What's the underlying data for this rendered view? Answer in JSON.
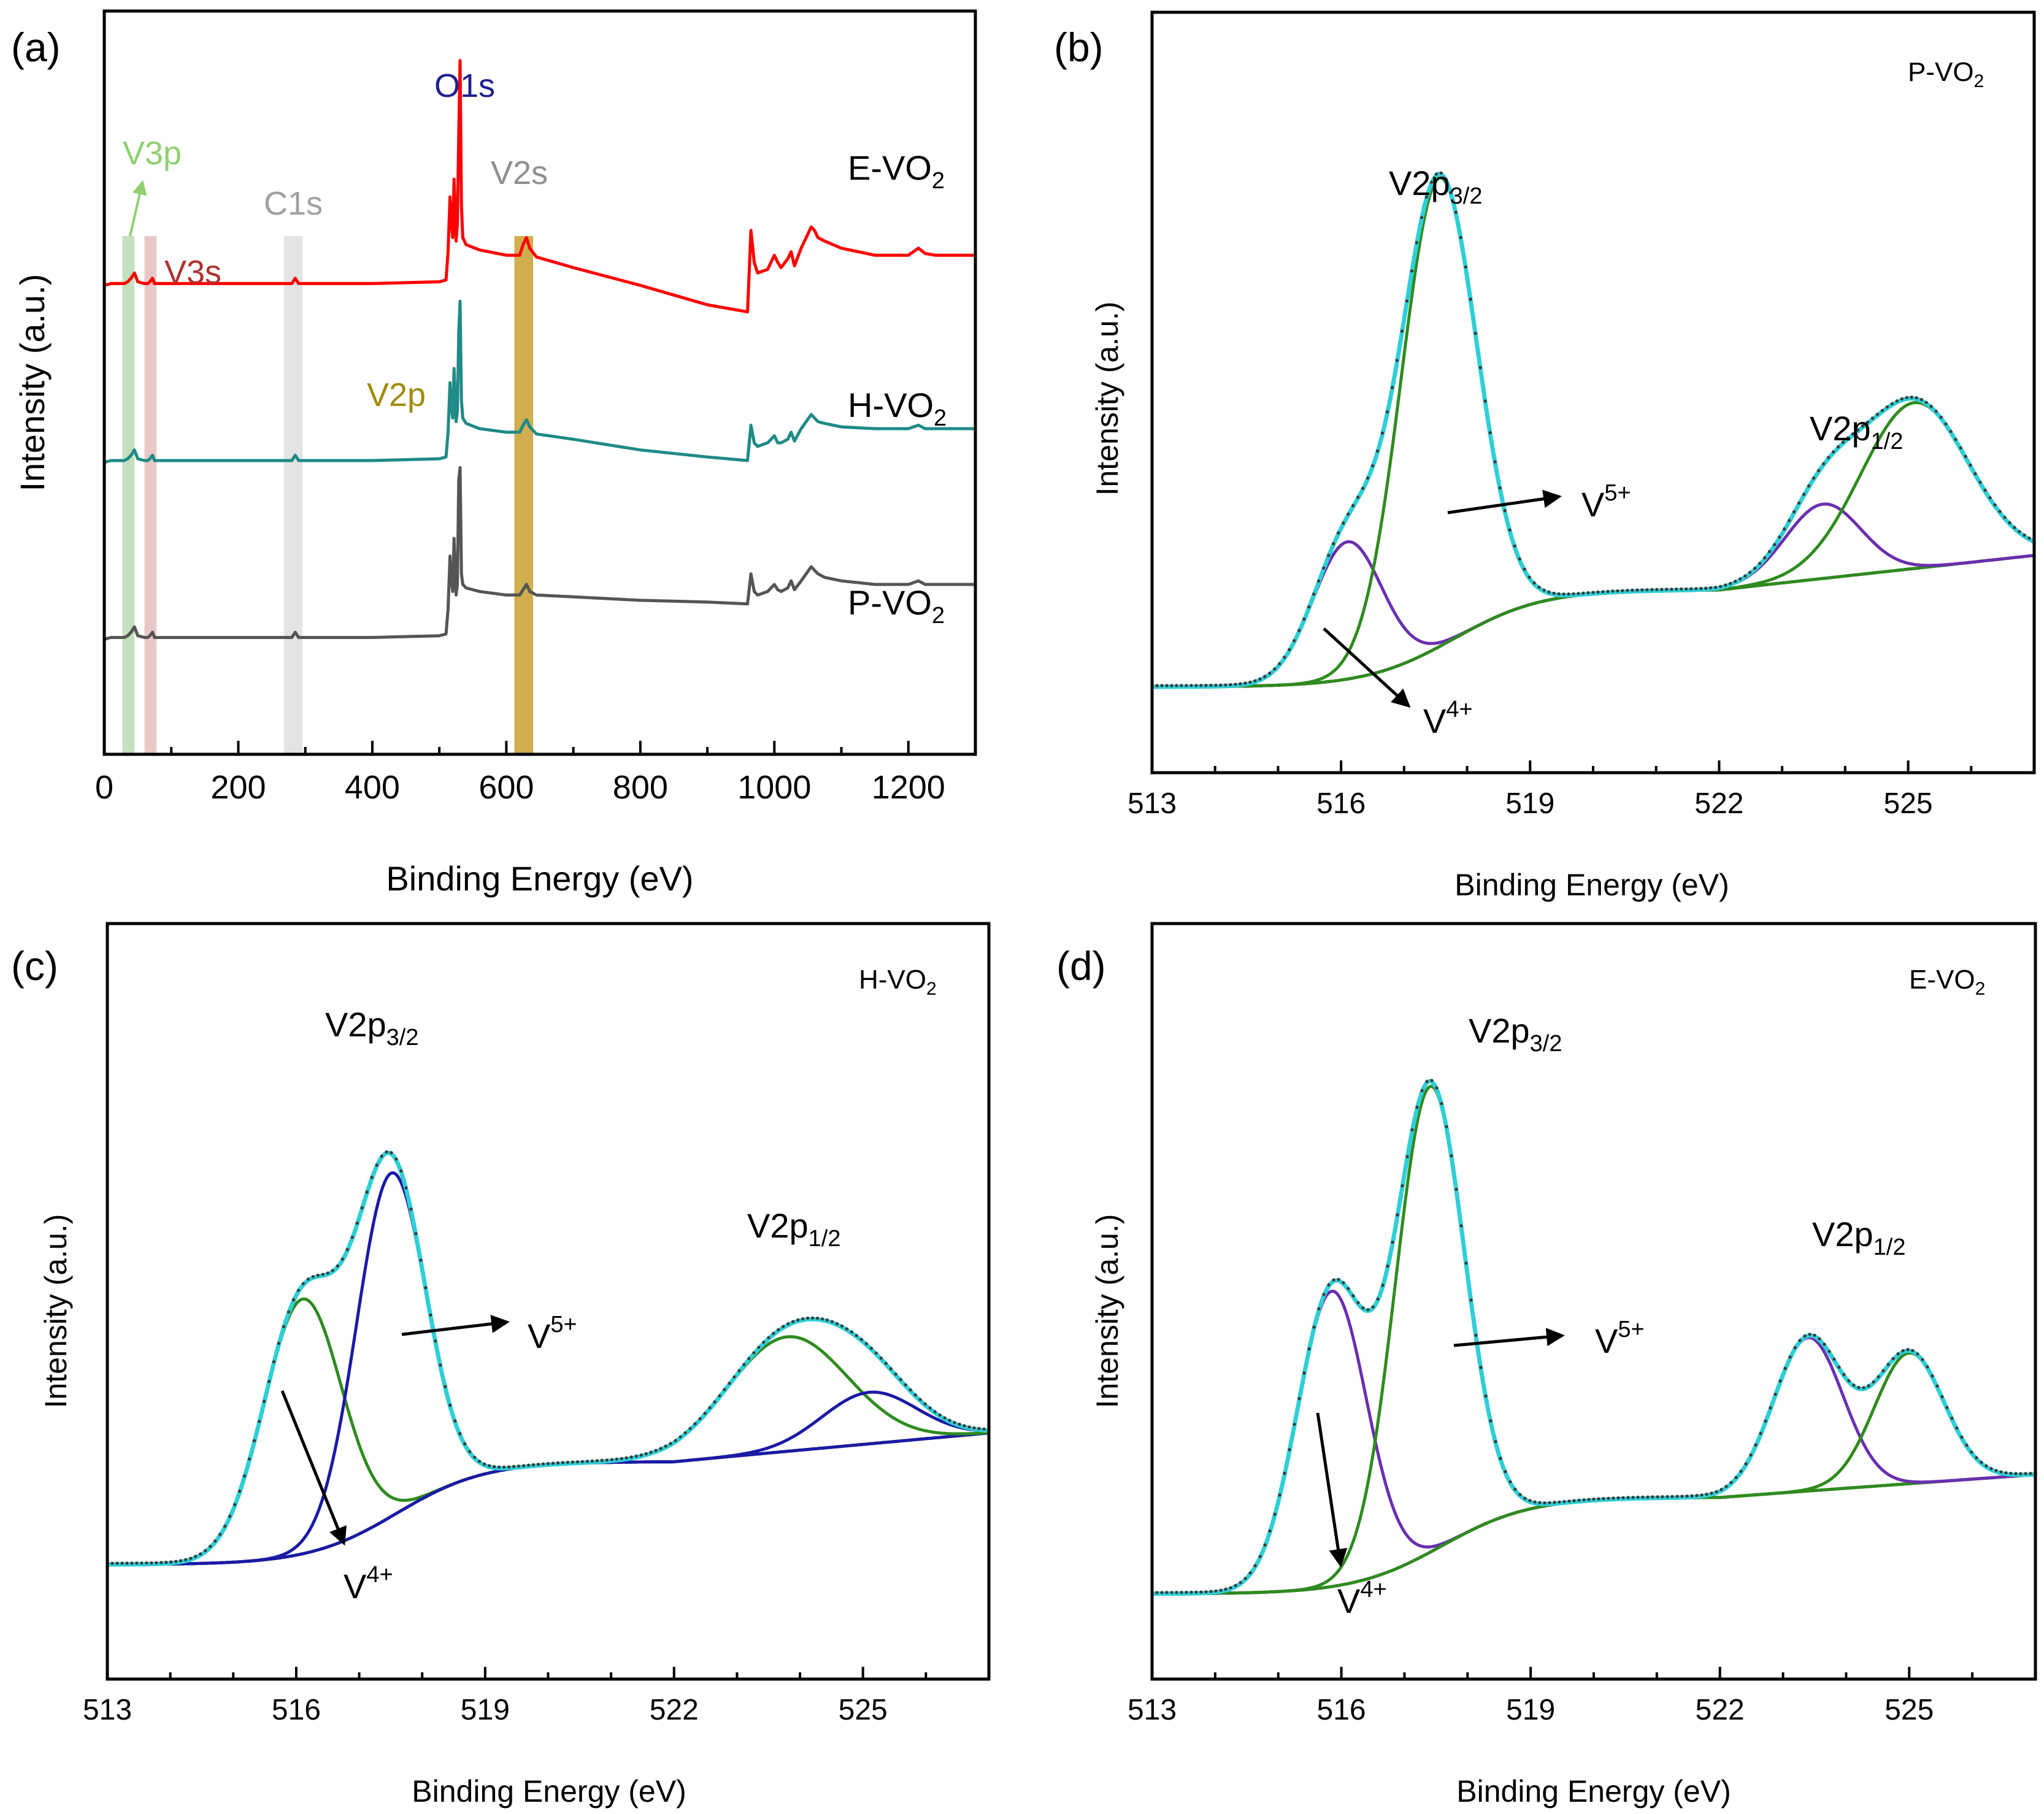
{
  "figure": {
    "panel_labels": [
      "(a)",
      "(b)",
      "(c)",
      "(d)"
    ],
    "background": "#ffffff"
  },
  "colors": {
    "E": "#ff0000",
    "H": "#1f8a86",
    "P": "#555555",
    "V3p": "#90d070",
    "V3s": "#b03030",
    "C1s": "#a0a0a0",
    "O1s": "#202090",
    "V2s": "#909090",
    "V2p": "#a08c10",
    "V3p_band": "#a8d4a0",
    "V3s_band": "#e0b0b0",
    "C1s_band": "#d8d8d8",
    "V2p_band": "#c8a030",
    "envelope": "#2fcfd6",
    "raw": "#3a3a3a",
    "v5_green": "#2e8b1e",
    "v4_purple": "#6a2fb0",
    "blue": "#1a1aa6",
    "background": "#d4a520"
  },
  "chart_data": [
    {
      "panel": "(a)",
      "type": "line",
      "title": "",
      "xlabel": "Binding Energy (eV)",
      "ylabel": "Intensity (a.u.)",
      "xlim": [
        0,
        1300
      ],
      "xticks": [
        "0",
        "200",
        "400",
        "600",
        "800",
        "1000",
        "1200"
      ],
      "xtick_values": [
        0,
        200,
        400,
        600,
        800,
        1000,
        1200
      ],
      "y_ticks_shown": false,
      "series": [
        {
          "name": "E-VO2",
          "label": "E-VO",
          "sub": "2",
          "color_key": "E",
          "x": [
            0,
            10,
            30,
            35,
            40,
            45,
            50,
            60,
            65,
            68,
            72,
            75,
            80,
            100,
            200,
            280,
            285,
            290,
            300,
            400,
            500,
            510,
            513,
            516,
            518,
            520,
            522,
            525,
            527,
            529,
            531,
            533,
            535,
            540,
            560,
            600,
            620,
            625,
            630,
            635,
            645,
            700,
            800,
            900,
            960,
            965,
            970,
            975,
            990,
            1000,
            1005,
            1010,
            1020,
            1025,
            1030,
            1040,
            1055,
            1060,
            1065,
            1075,
            1100,
            1150,
            1200,
            1215,
            1225,
            1240,
            1300
          ],
          "y": [
            205,
            206,
            206,
            207,
            209,
            212,
            207,
            206,
            206,
            207,
            209,
            206,
            206,
            206,
            206,
            206,
            209,
            206,
            206,
            206,
            207,
            208,
            224,
            255,
            240,
            232,
            265,
            230,
            240,
            290,
            332,
            250,
            232,
            228,
            225,
            222,
            222,
            228,
            232,
            226,
            221,
            215,
            205,
            194,
            190,
            236,
            218,
            212,
            214,
            222,
            218,
            215,
            220,
            224,
            216,
            226,
            238,
            236,
            232,
            230,
            226,
            222,
            222,
            226,
            223,
            222,
            222
          ]
        },
        {
          "name": "H-VO2",
          "label": "H-VO",
          "sub": "2",
          "color_key": "H",
          "x": [
            0,
            10,
            30,
            35,
            40,
            45,
            50,
            60,
            65,
            68,
            72,
            75,
            80,
            100,
            200,
            280,
            285,
            290,
            300,
            400,
            500,
            510,
            513,
            516,
            518,
            520,
            522,
            525,
            527,
            529,
            531,
            533,
            535,
            540,
            560,
            600,
            620,
            625,
            630,
            635,
            645,
            700,
            800,
            900,
            960,
            965,
            970,
            975,
            990,
            1000,
            1005,
            1010,
            1020,
            1025,
            1030,
            1040,
            1055,
            1060,
            1065,
            1075,
            1100,
            1150,
            1200,
            1215,
            1225,
            1240,
            1300
          ],
          "y": [
            105,
            106,
            106,
            107,
            109,
            112,
            107,
            106,
            106,
            107,
            109,
            106,
            106,
            106,
            106,
            106,
            109,
            106,
            106,
            106,
            107,
            108,
            122,
            150,
            136,
            130,
            158,
            128,
            134,
            178,
            196,
            140,
            130,
            127,
            124,
            122,
            122,
            126,
            129,
            125,
            121,
            118,
            112,
            108,
            106,
            126,
            116,
            114,
            116,
            120,
            116,
            116,
            118,
            122,
            117,
            124,
            132,
            130,
            128,
            127,
            125,
            124,
            124,
            126,
            124,
            124,
            124
          ]
        },
        {
          "name": "P-VO2",
          "label": "P-VO",
          "sub": "2",
          "color_key": "P",
          "x": [
            0,
            10,
            30,
            35,
            40,
            45,
            50,
            60,
            65,
            68,
            72,
            75,
            80,
            100,
            200,
            280,
            285,
            290,
            300,
            400,
            500,
            510,
            513,
            516,
            518,
            520,
            522,
            525,
            527,
            529,
            531,
            533,
            535,
            540,
            560,
            600,
            620,
            625,
            630,
            635,
            645,
            700,
            800,
            900,
            960,
            965,
            970,
            975,
            990,
            1000,
            1005,
            1010,
            1020,
            1025,
            1030,
            1040,
            1055,
            1060,
            1065,
            1075,
            1100,
            1150,
            1200,
            1215,
            1225,
            1240,
            1300
          ],
          "y": [
            5,
            6,
            6,
            7,
            9,
            12,
            7,
            6,
            6,
            7,
            9,
            6,
            6,
            6,
            6,
            6,
            9,
            6,
            6,
            6,
            7,
            8,
            22,
            52,
            38,
            32,
            62,
            30,
            36,
            95,
            102,
            42,
            36,
            34,
            32,
            30,
            30,
            33,
            36,
            32,
            30,
            29,
            27,
            26,
            25,
            42,
            32,
            30,
            32,
            36,
            33,
            32,
            34,
            38,
            33,
            38,
            46,
            44,
            42,
            40,
            38,
            36,
            36,
            38,
            36,
            36,
            36
          ]
        }
      ],
      "bands": [
        {
          "name": "V3p",
          "x": [
            27,
            45
          ],
          "color_key": "V3p_band"
        },
        {
          "name": "V3s",
          "x": [
            60,
            78
          ],
          "color_key": "V3s_band"
        },
        {
          "name": "C1s",
          "x": [
            268,
            296
          ],
          "color_key": "C1s_band"
        },
        {
          "name": "V2p",
          "x": [
            612,
            640
          ],
          "color_key": "V2p_band"
        }
      ],
      "annotations": [
        {
          "text": "V3p",
          "color_key": "V3p"
        },
        {
          "text": "V3s",
          "color_key": "V3s"
        },
        {
          "text": "C1s",
          "color_key": "C1s"
        },
        {
          "text": "O1s",
          "color_key": "O1s"
        },
        {
          "text": "V2s",
          "color_key": "V2s"
        },
        {
          "text": "V2p",
          "color_key": "V2p"
        }
      ]
    },
    {
      "panel": "(b)",
      "type": "line",
      "sample_label": "P-VO",
      "sample_sub": "2",
      "xlabel": "Binding Energy (eV)",
      "ylabel": "Intensity (a.u.)",
      "xlim": [
        513,
        527
      ],
      "xticks": [
        "513",
        "516",
        "519",
        "522",
        "525"
      ],
      "xtick_values": [
        513,
        516,
        519,
        522,
        525
      ],
      "ylim": [
        -0.15,
        1.18
      ],
      "bg": {
        "start": 0,
        "end": 0.17,
        "center": 517.8,
        "width": 0.7,
        "slope": 0.012
      },
      "peaks": [
        {
          "name": "V4+ 2p3/2",
          "center": 516.1,
          "height": 0.24,
          "sigma": 0.55,
          "color_key": "v4_purple"
        },
        {
          "name": "V5+ 2p3/2",
          "center": 517.55,
          "height": 0.82,
          "sigma": 0.6,
          "color_key": "v5_green"
        },
        {
          "name": "V4+ 2p1/2",
          "center": 523.65,
          "height": 0.13,
          "sigma": 0.6,
          "color_key": "v4_purple"
        },
        {
          "name": "V5+ 2p1/2",
          "center": 525.1,
          "height": 0.29,
          "sigma": 0.85,
          "color_key": "v5_green"
        }
      ],
      "label_32": "V2p",
      "label_32_sub": "3/2",
      "label_12": "V2p",
      "label_12_sub": "1/2",
      "v5": "V",
      "v5_sup": "5+",
      "v4": "V",
      "v4_sup": "4+"
    },
    {
      "panel": "(c)",
      "type": "line",
      "sample_label": "H-VO",
      "sample_sub": "2",
      "xlabel": "Binding Energy (eV)",
      "ylabel": "Intensity (a.u.)",
      "xlim": [
        513,
        527
      ],
      "xticks": [
        "513",
        "516",
        "519",
        "522",
        "525"
      ],
      "xtick_values": [
        513,
        516,
        519,
        522,
        525
      ],
      "ylim": [
        -0.2,
        1.12
      ],
      "bg": {
        "start": 0,
        "end": 0.18,
        "center": 517.6,
        "width": 0.7,
        "slope": 0.01
      },
      "peaks": [
        {
          "name": "V4+ 2p3/2",
          "center": 516.1,
          "height": 0.445,
          "sigma": 0.62,
          "color_key": "v5_green"
        },
        {
          "name": "V5+ 2p3/2",
          "center": 517.5,
          "height": 0.6,
          "sigma": 0.55,
          "color_key": "blue"
        },
        {
          "name": "V4+ 2p1/2",
          "center": 523.8,
          "height": 0.2,
          "sigma": 0.95,
          "color_key": "v5_green"
        },
        {
          "name": "V5+ 2p1/2",
          "center": 525.1,
          "height": 0.09,
          "sigma": 0.75,
          "color_key": "blue"
        }
      ],
      "label_32": "V2p",
      "label_32_sub": "3/2",
      "label_12": "V2p",
      "label_12_sub": "1/2",
      "v5": "V",
      "v5_sup": "5+",
      "v4": "V",
      "v4_sup": "4+"
    },
    {
      "panel": "(d)",
      "type": "line",
      "sample_label": "E-VO",
      "sample_sub": "2",
      "xlabel": "Binding Energy (eV)",
      "ylabel": "Intensity (a.u.)",
      "xlim": [
        513,
        527
      ],
      "xticks": [
        "513",
        "516",
        "519",
        "522",
        "525"
      ],
      "xtick_values": [
        513,
        516,
        519,
        522,
        525
      ],
      "ylim": [
        -0.15,
        1.18
      ],
      "bg": {
        "start": 0,
        "end": 0.17,
        "center": 517.6,
        "width": 0.7,
        "slope": 0.008
      },
      "peaks": [
        {
          "name": "V4+ 2p3/2",
          "center": 515.85,
          "height": 0.52,
          "sigma": 0.55,
          "color_key": "v4_purple"
        },
        {
          "name": "V5+ 2p3/2",
          "center": 517.4,
          "height": 0.82,
          "sigma": 0.55,
          "color_key": "v5_green"
        },
        {
          "name": "V4+ 2p1/2",
          "center": 523.4,
          "height": 0.27,
          "sigma": 0.55,
          "color_key": "v4_purple"
        },
        {
          "name": "V5+ 2p1/2",
          "center": 525.0,
          "height": 0.23,
          "sigma": 0.55,
          "color_key": "v5_green"
        }
      ],
      "label_32": "V2p",
      "label_32_sub": "3/2",
      "label_12": "V2p",
      "label_12_sub": "1/2",
      "v5": "V",
      "v5_sup": "5+",
      "v4": "V",
      "v4_sup": "4+"
    }
  ]
}
